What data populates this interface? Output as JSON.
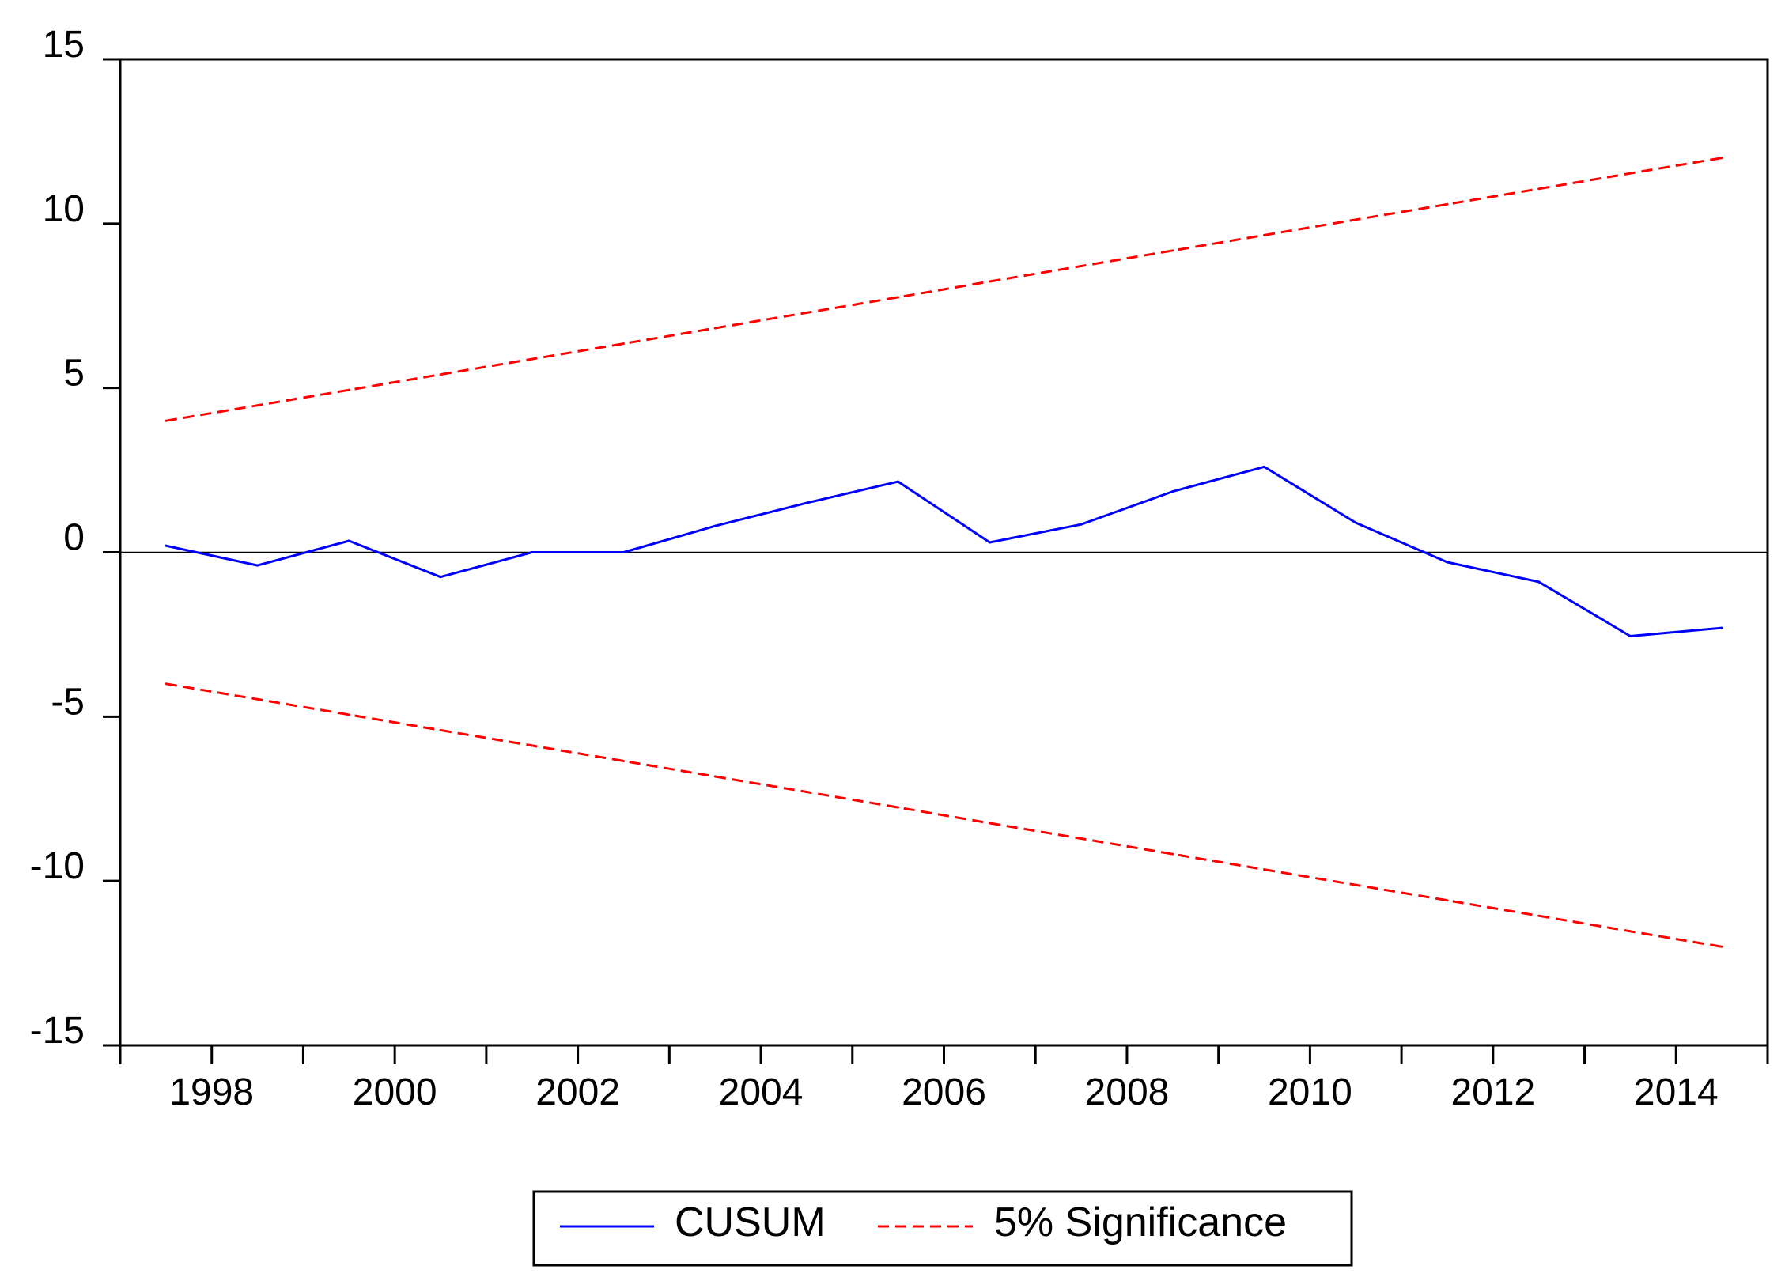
{
  "chart_data": {
    "type": "line",
    "title": "",
    "xlabel": "",
    "ylabel": "",
    "x": [
      1997.5,
      1998.5,
      1999.5,
      2000.5,
      2001.5,
      2002.5,
      2003.5,
      2004.5,
      2005.5,
      2006.5,
      2007.5,
      2008.5,
      2009.5,
      2010.5,
      2011.5,
      2012.5,
      2013.5,
      2014.5
    ],
    "xlim": [
      1997,
      2015
    ],
    "ylim": [
      -15,
      15
    ],
    "xticks": [
      "1998",
      "2000",
      "2002",
      "2004",
      "2006",
      "2008",
      "2010",
      "2012",
      "2014"
    ],
    "yticks": [
      "15",
      "10",
      "5",
      "0",
      "-5",
      "-10",
      "-15"
    ],
    "grid": false,
    "legend_position": "bottom-center",
    "series": [
      {
        "name": "CUSUM",
        "color": "#0000ff",
        "style": "solid",
        "values": [
          0.2,
          -0.4,
          0.35,
          -0.75,
          0.0,
          0.0,
          0.8,
          1.5,
          2.15,
          0.3,
          0.85,
          1.85,
          2.6,
          0.9,
          -0.3,
          -0.9,
          -2.55,
          -2.3
        ]
      },
      {
        "name": "5% Significance",
        "color": "#ff0000",
        "style": "dashed",
        "values": [
          4.0,
          4.47,
          4.94,
          5.41,
          5.88,
          6.35,
          6.82,
          7.29,
          7.76,
          8.24,
          8.71,
          9.18,
          9.65,
          10.12,
          10.59,
          11.06,
          11.53,
          12.0
        ]
      },
      {
        "name": "",
        "color": "#ff0000",
        "style": "dashed",
        "values": [
          -4.0,
          -4.47,
          -4.94,
          -5.41,
          -5.88,
          -6.35,
          -6.82,
          -7.29,
          -7.76,
          -8.24,
          -8.71,
          -9.18,
          -9.65,
          -10.12,
          -10.59,
          -11.06,
          -11.53,
          -12.0
        ]
      }
    ],
    "legend": [
      {
        "label": "CUSUM",
        "color": "#0000ff",
        "style": "solid"
      },
      {
        "label": "5% Significance",
        "color": "#ff0000",
        "style": "dashed"
      }
    ]
  }
}
